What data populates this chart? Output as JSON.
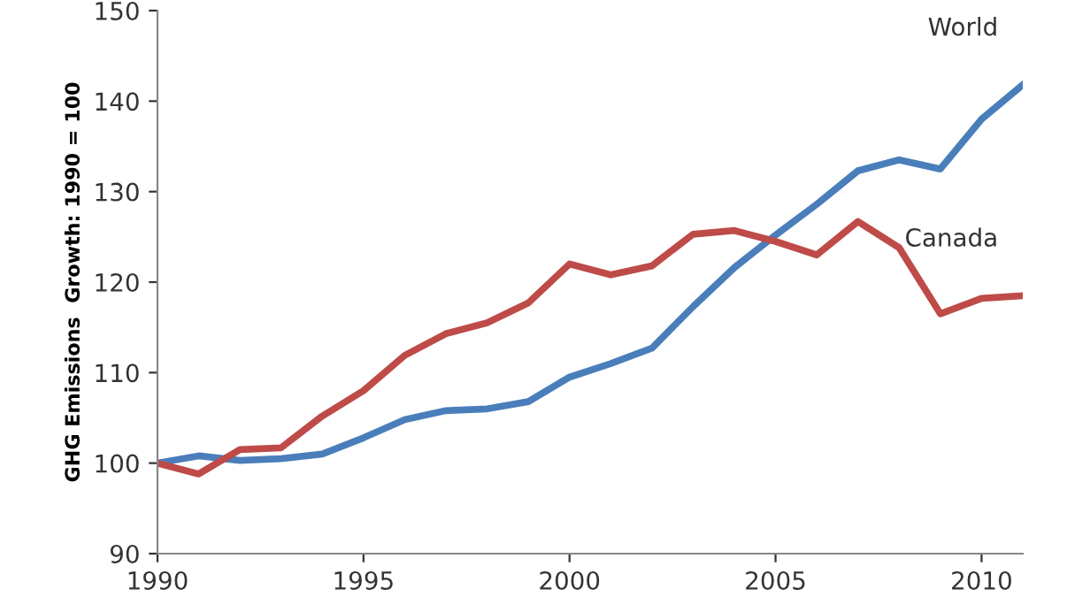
{
  "chart_data": {
    "type": "line",
    "ylabel": "GHG Emissions  Growth: 1990 = 100",
    "x": [
      1990,
      1991,
      1992,
      1993,
      1994,
      1995,
      1996,
      1997,
      1998,
      1999,
      2000,
      2001,
      2002,
      2003,
      2004,
      2005,
      2006,
      2007,
      2008,
      2009,
      2010,
      2011
    ],
    "series": [
      {
        "name": "World",
        "color": "#4a7ebb",
        "values": [
          100,
          100.8,
          100.3,
          100.5,
          101,
          102.8,
          104.8,
          105.8,
          106,
          106.8,
          109.5,
          111,
          112.7,
          117.3,
          121.6,
          125.2,
          128.6,
          132.3,
          133.5,
          132.5,
          138,
          141.8
        ]
      },
      {
        "name": "Canada",
        "color": "#be4b48",
        "values": [
          100,
          98.8,
          101.5,
          101.7,
          105.2,
          108,
          111.9,
          114.3,
          115.5,
          117.7,
          122,
          120.8,
          121.8,
          125.3,
          125.7,
          124.5,
          123,
          126.7,
          123.8,
          116.5,
          118.2,
          118.5
        ]
      }
    ],
    "xlim": [
      1990,
      2011
    ],
    "xticks": [
      1990,
      1995,
      2000,
      2005,
      2010
    ],
    "ylim": [
      90,
      150
    ],
    "yticks": [
      90,
      100,
      110,
      120,
      130,
      140,
      150
    ],
    "grid": false,
    "legend": false,
    "marker": "none",
    "line_style": "solid"
  }
}
